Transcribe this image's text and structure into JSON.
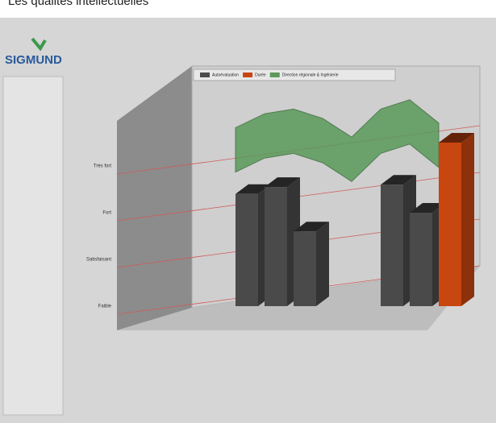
{
  "chart_data": {
    "type": "bar3d",
    "title": "Les qualités intellectuelles",
    "logo": "SIGMUND",
    "categories": [
      null,
      null,
      null,
      null,
      null,
      null,
      null,
      null,
      null,
      null
    ],
    "series": [
      {
        "name": "Autoévaluation",
        "color": "#4a4a4a",
        "kind": "bar",
        "values": [
          null,
          null,
          3.4,
          3.55,
          2.6,
          null,
          null,
          3.6,
          3.0,
          null
        ]
      },
      {
        "name": "Durée",
        "color": "#c8460f",
        "kind": "bar",
        "values": [
          null,
          null,
          null,
          null,
          null,
          null,
          null,
          null,
          null,
          4.5
        ]
      },
      {
        "name": "Direction régionale & Ingénierie",
        "color": "#5a9a5a",
        "kind": "area",
        "values": [
          null,
          null,
          4.3,
          4.6,
          4.7,
          4.5,
          4.1,
          4.7,
          4.9,
          4.4
        ]
      }
    ],
    "ylim": [
      1,
      6
    ],
    "yticks": [
      {
        "value": 1,
        "label": "Faible"
      },
      {
        "value": 2,
        "label": "Satisfaisant"
      },
      {
        "value": 3,
        "label": "Fort"
      },
      {
        "value": 4,
        "label": "Très fort"
      }
    ],
    "grid": true
  }
}
